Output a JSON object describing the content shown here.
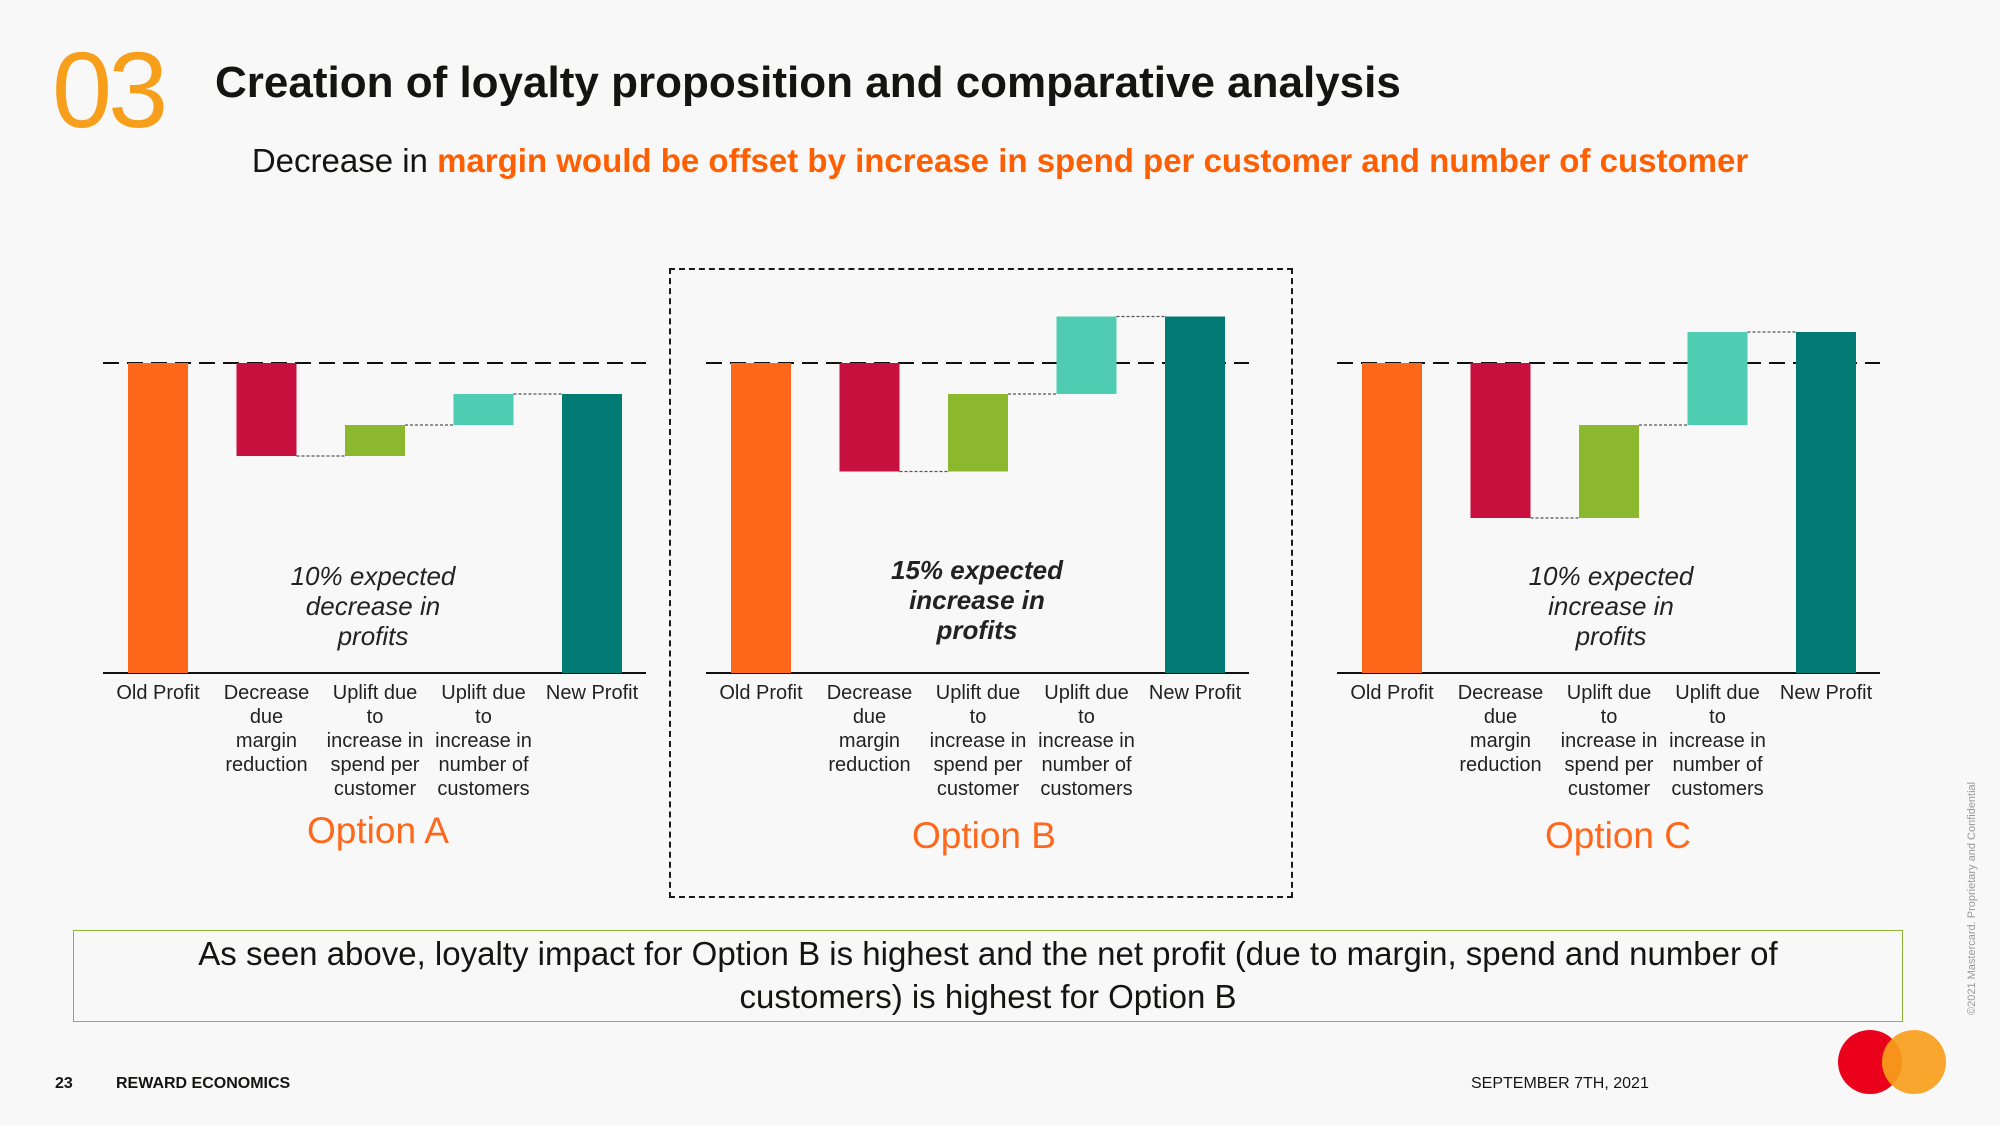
{
  "header": {
    "section_number": "03",
    "title": "Creation of loyalty proposition and comparative analysis",
    "subtitle_plain": "Decrease in ",
    "subtitle_highlight": "margin would be offset by increase in spend per customer and number of customer"
  },
  "colors": {
    "old_profit": "#ff671b",
    "decrease": "#c8103e",
    "uplift_spend": "#8cb82d",
    "uplift_customers": "#4ecdb2",
    "new_profit": "#007a72",
    "option_label": "#ff671b"
  },
  "chart_data": [
    {
      "type": "bar",
      "subtype": "waterfall",
      "option": "Option A",
      "categories": [
        "Old Profit",
        "Decrease due margin reduction",
        "Uplift due to increase in spend per customer",
        "Uplift due to increase in number of customers",
        "New Profit"
      ],
      "values": [
        100,
        -30,
        10,
        10,
        90
      ],
      "annotation": "10% expected decrease in profits",
      "annotation_bold": false
    },
    {
      "type": "bar",
      "subtype": "waterfall",
      "option": "Option B",
      "categories": [
        "Old Profit",
        "Decrease due margin reduction",
        "Uplift due to increase in spend per customer",
        "Uplift due to increase in number of customers",
        "New Profit"
      ],
      "values": [
        100,
        -35,
        25,
        25,
        115
      ],
      "annotation": "15% expected increase in profits",
      "annotation_bold": true
    },
    {
      "type": "bar",
      "subtype": "waterfall",
      "option": "Option C",
      "categories": [
        "Old Profit",
        "Decrease due margin reduction",
        "Uplift due to increase in spend per customer",
        "Uplift due to increase in number of customers",
        "New Profit"
      ],
      "values": [
        100,
        -50,
        30,
        30,
        110
      ],
      "annotation": "10% expected increase in profits",
      "annotation_bold": false
    }
  ],
  "summary": "As seen above, loyalty impact for Option B is highest and the net profit (due to margin, spend and number of customers) is highest for Option B",
  "footer": {
    "page_number": "23",
    "section": "REWARD ECONOMICS",
    "date": "SEPTEMBER 7TH, 2021",
    "copyright": "©2021 Mastercard. Proprietary and Confidential"
  }
}
